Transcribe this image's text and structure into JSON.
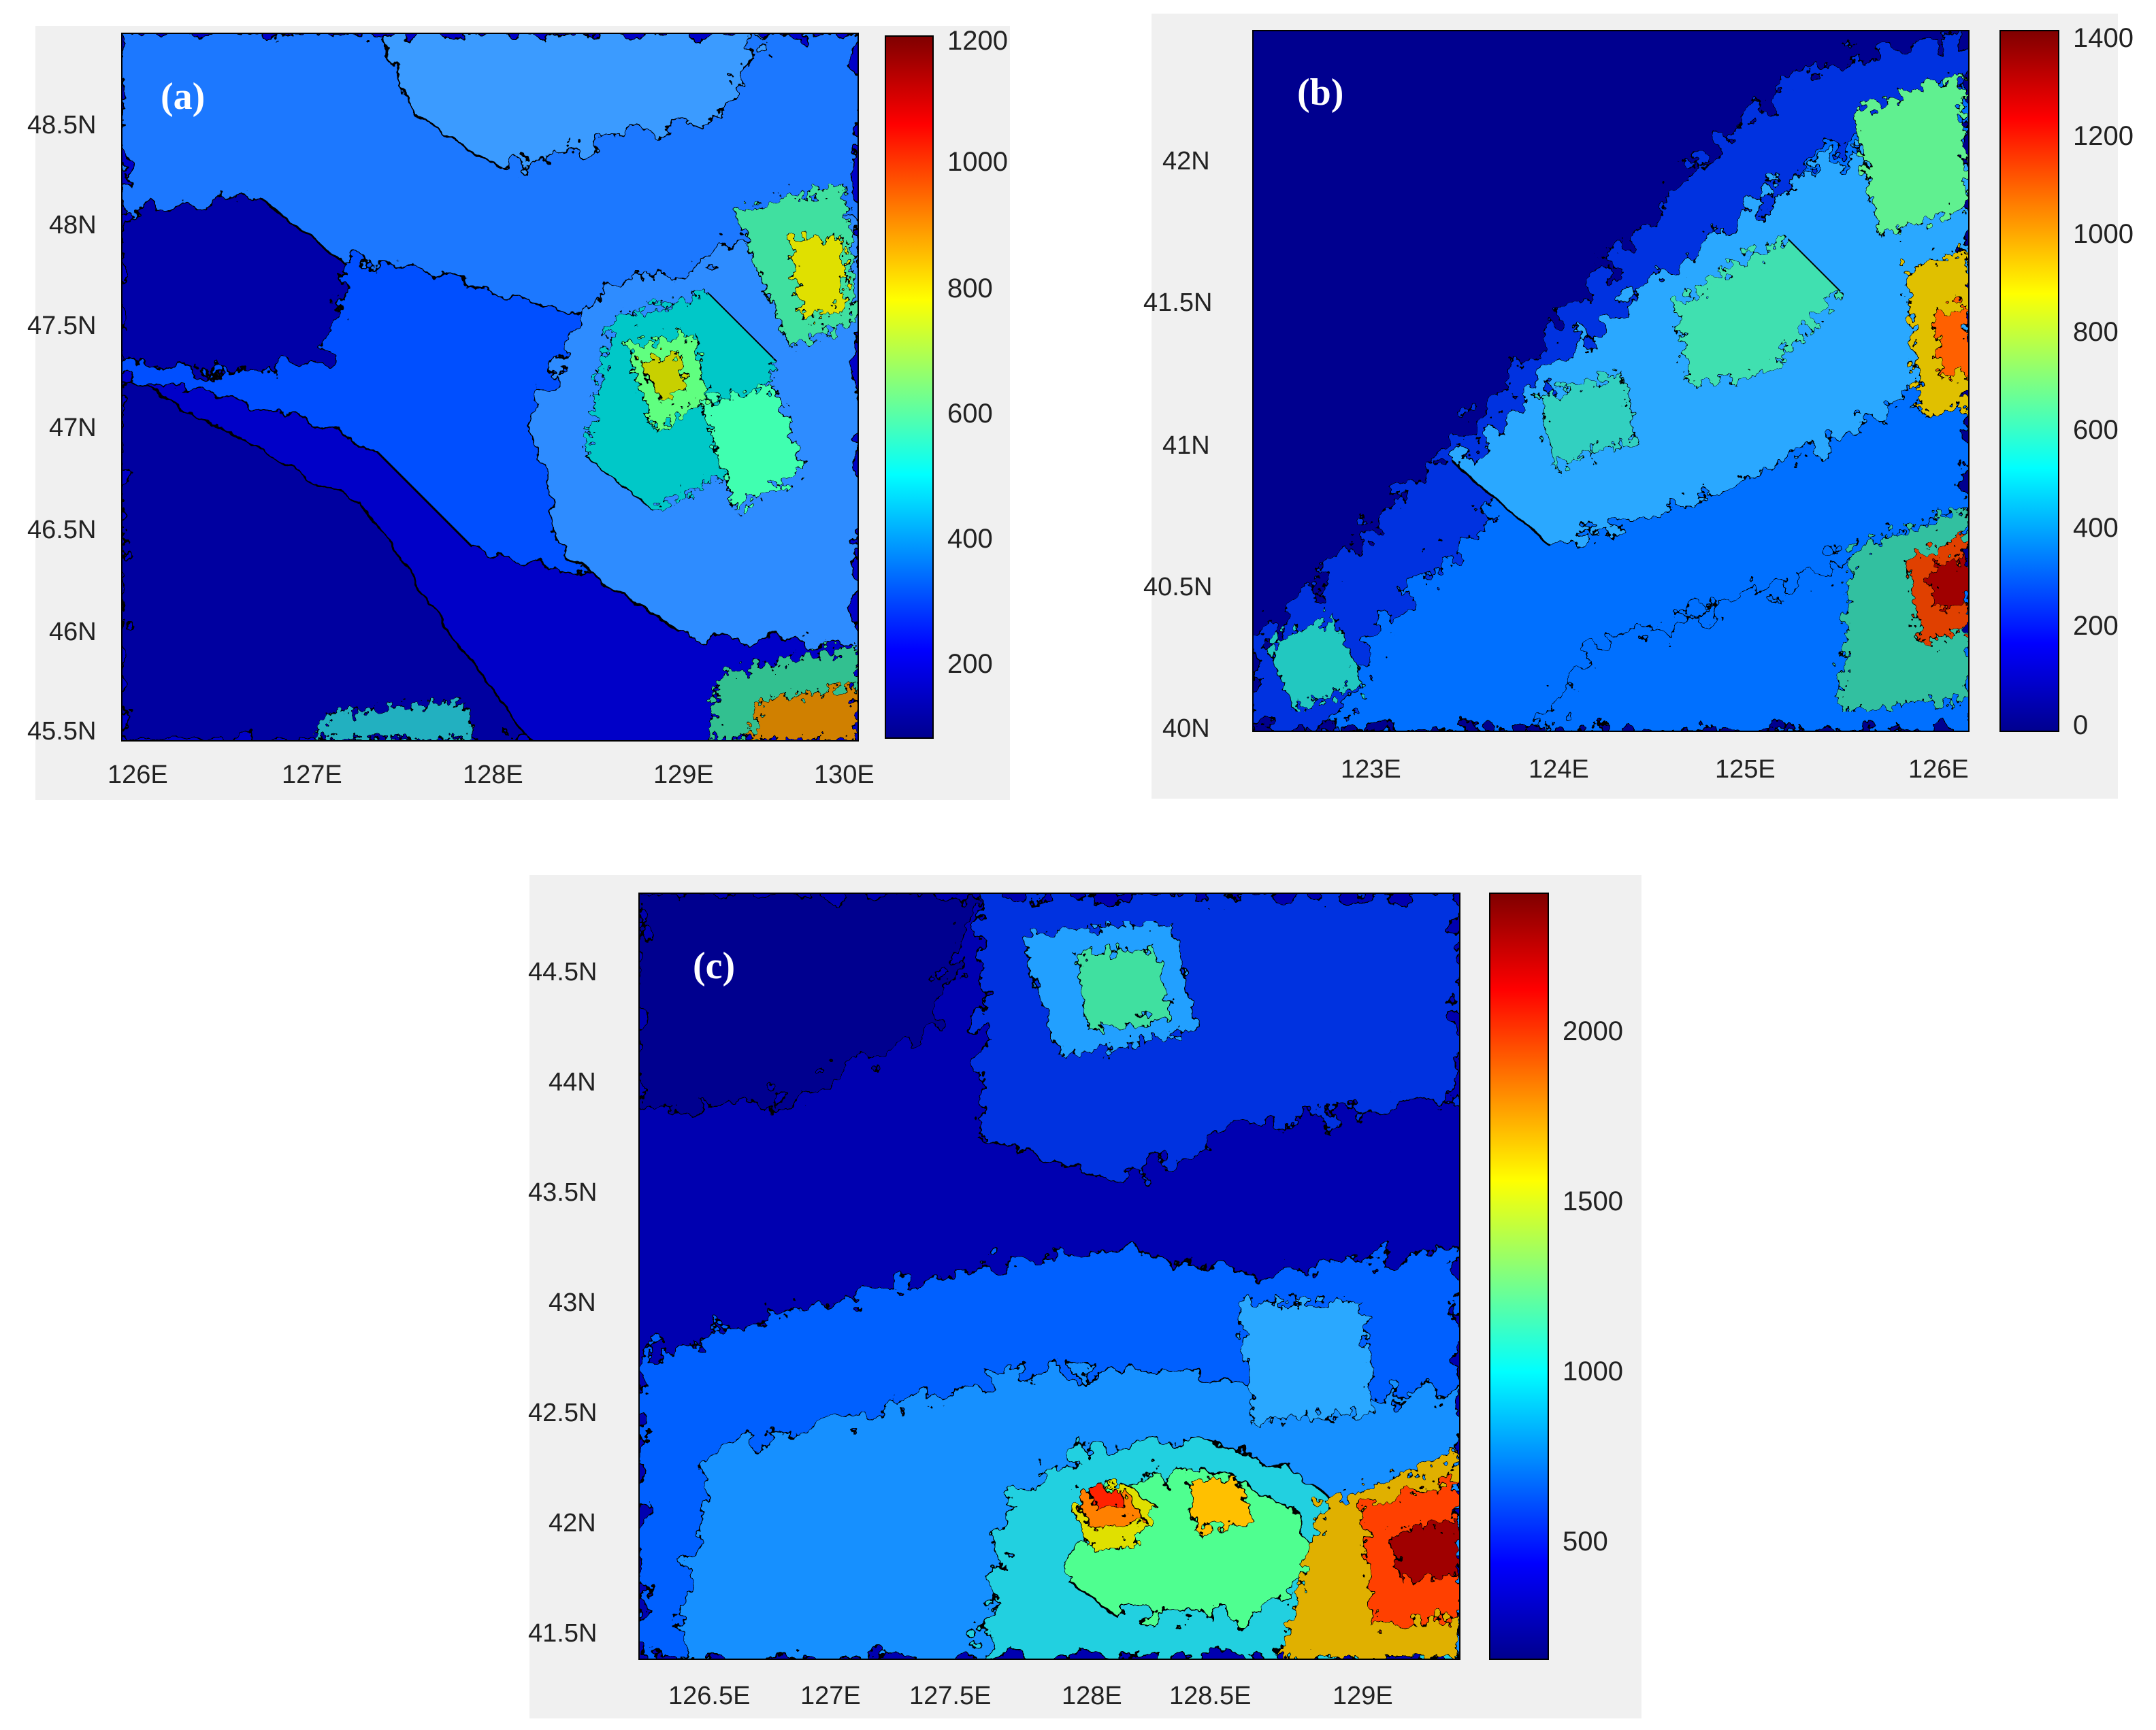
{
  "colors": {
    "colormap": [
      "#00008f",
      "#0000ff",
      "#0080ff",
      "#00ffff",
      "#80ff80",
      "#ffff00",
      "#ff8000",
      "#ff0000",
      "#800000"
    ],
    "panel_background": "#f0f0f0",
    "contour_line": "#000000"
  },
  "panels": [
    {
      "id": "a",
      "label": "(a)",
      "lat_labels": [
        "48.5N",
        "48N",
        "47.5N",
        "47N",
        "46.5N",
        "46N",
        "45.5N"
      ],
      "lon_labels": [
        "126E",
        "127E",
        "128E",
        "129E",
        "130E"
      ],
      "colorbar_labels": [
        "1200",
        "1000",
        "800",
        "600",
        "400",
        "200"
      ],
      "colorbar_range": [
        100,
        1250
      ]
    },
    {
      "id": "b",
      "label": "(b)",
      "lat_labels": [
        "42N",
        "41.5N",
        "41N",
        "40.5N",
        "40N"
      ],
      "lon_labels": [
        "123E",
        "124E",
        "125E",
        "126E"
      ],
      "colorbar_labels": [
        "1400",
        "1200",
        "1000",
        "800",
        "600",
        "400",
        "200",
        "0"
      ],
      "colorbar_range": [
        0,
        1450
      ]
    },
    {
      "id": "c",
      "label": "(c)",
      "lat_labels": [
        "44.5N",
        "44N",
        "43.5N",
        "43N",
        "42.5N",
        "42N",
        "41.5N"
      ],
      "lon_labels": [
        "126.5E",
        "127E",
        "127.5E",
        "128E",
        "128.5E",
        "129E"
      ],
      "colorbar_labels": [
        "2000",
        "1500",
        "1000",
        "500"
      ],
      "colorbar_range": [
        150,
        2400
      ]
    }
  ]
}
